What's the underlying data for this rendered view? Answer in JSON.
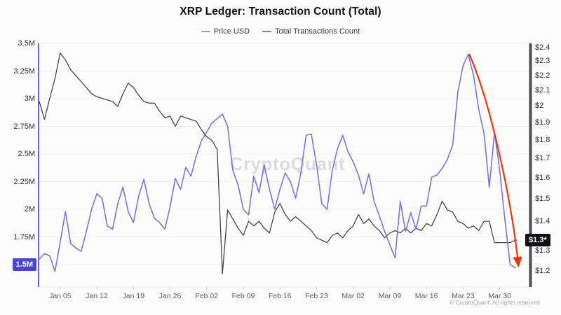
{
  "title": "XRP Ledger: Transaction Count (Total)",
  "legend": [
    {
      "label": "Price USD",
      "color": "#9b9ba2"
    },
    {
      "label": "Total Transactions Count",
      "color": "#7c72e2"
    }
  ],
  "watermark": "CryptoQuant",
  "footer": "© CryptoQuant. All rights reserved",
  "colors": {
    "price_line": "#454549",
    "transactions_line": "#7c72e2",
    "arrow": "#e8380e",
    "left_badge_bg": "#4b44cc",
    "right_badge_bg": "#111113",
    "left_axis_line": "#6e61dd",
    "right_axis_line": "#4b4b50",
    "grid": "#f1f1f4",
    "x_axis_line": "#e3e3e7",
    "x_tick_mark": "#c9c9cf"
  },
  "chart_data": {
    "type": "line",
    "title": "XRP Ledger: Transaction Count (Total)",
    "x_start": "Jan 01",
    "x_end": "Apr 02",
    "frequency": "daily",
    "x_ticks": [
      {
        "label": "Jan 05",
        "day": 4
      },
      {
        "label": "Jan 12",
        "day": 11
      },
      {
        "label": "Jan 19",
        "day": 18
      },
      {
        "label": "Jan 26",
        "day": 25
      },
      {
        "label": "Feb 02",
        "day": 32
      },
      {
        "label": "Feb 09",
        "day": 39
      },
      {
        "label": "Feb 16",
        "day": 46
      },
      {
        "label": "Feb 23",
        "day": 53
      },
      {
        "label": "Mar 02",
        "day": 60
      },
      {
        "label": "Mar 09",
        "day": 67
      },
      {
        "label": "Mar 16",
        "day": 74
      },
      {
        "label": "Mar 23",
        "day": 81
      },
      {
        "label": "Mar 30",
        "day": 88
      }
    ],
    "left_axis": {
      "label_unit": "M transactions",
      "scale": "linear",
      "range": [
        1.5,
        3.5
      ],
      "ticks": [
        {
          "label": "3.5M",
          "value": 3.5
        },
        {
          "label": "3.25M",
          "value": 3.25
        },
        {
          "label": "3M",
          "value": 3.0
        },
        {
          "label": "2.75M",
          "value": 2.75
        },
        {
          "label": "2.5M",
          "value": 2.5
        },
        {
          "label": "2.25M",
          "value": 2.25
        },
        {
          "label": "2M",
          "value": 2.0
        },
        {
          "label": "1.75M",
          "value": 1.75
        }
      ],
      "badge": {
        "label": "1.5M",
        "value": 1.5
      }
    },
    "right_axis": {
      "label_unit": "USD",
      "scale": "log",
      "range": [
        1.2,
        2.4
      ],
      "ticks": [
        {
          "label": "$2.4",
          "value": 2.4,
          "dy": 0
        },
        {
          "label": "$2.3",
          "value": 2.3,
          "dy": 0
        },
        {
          "label": "$2.2",
          "value": 2.2,
          "dy": 0
        },
        {
          "label": "$2.1",
          "value": 2.1,
          "dy": 0
        },
        {
          "label": "$2",
          "value": 2.0,
          "dy": 0
        },
        {
          "label": "$1.9",
          "value": 1.9,
          "dy": 0
        },
        {
          "label": "$1.8",
          "value": 1.8,
          "dy": 0
        },
        {
          "label": "$1.7",
          "value": 1.7,
          "dy": 0
        },
        {
          "label": "$1.6",
          "value": 1.6,
          "dy": 0
        },
        {
          "label": "$1.5",
          "value": 1.5,
          "dy": 0
        },
        {
          "label": "$1.4",
          "value": 1.4,
          "dy": 0
        },
        {
          "label": "$1.3",
          "value": 1.3,
          "dy": 8
        },
        {
          "label": "$1.2",
          "value": 1.2,
          "dy": 0
        }
      ],
      "badge": {
        "label": "$1.3*",
        "value": 1.32
      }
    },
    "series": [
      {
        "name": "Price USD",
        "axis": "right",
        "color": "#454549",
        "width": 1.3,
        "values": [
          2.03,
          1.92,
          2.05,
          2.18,
          2.36,
          2.31,
          2.24,
          2.2,
          2.16,
          2.12,
          2.08,
          2.06,
          2.05,
          2.04,
          2.03,
          2.0,
          2.08,
          2.15,
          2.12,
          2.07,
          2.03,
          2.02,
          2.02,
          1.97,
          1.93,
          1.94,
          1.88,
          1.94,
          1.93,
          1.92,
          1.91,
          1.86,
          1.82,
          1.8,
          1.75,
          1.19,
          1.45,
          1.41,
          1.37,
          1.34,
          1.4,
          1.38,
          1.4,
          1.37,
          1.35,
          1.44,
          1.48,
          1.43,
          1.4,
          1.42,
          1.4,
          1.38,
          1.36,
          1.33,
          1.32,
          1.31,
          1.34,
          1.35,
          1.33,
          1.36,
          1.38,
          1.43,
          1.39,
          1.41,
          1.38,
          1.36,
          1.33,
          1.35,
          1.36,
          1.35,
          1.37,
          1.35,
          1.37,
          1.36,
          1.39,
          1.38,
          1.43,
          1.49,
          1.45,
          1.44,
          1.4,
          1.39,
          1.37,
          1.38,
          1.36,
          1.4,
          1.4,
          1.31,
          1.31,
          1.31,
          1.31,
          1.32
        ]
      },
      {
        "name": "Total Transactions Count",
        "axis": "left",
        "color": "#7c72e2",
        "width": 1.6,
        "values": [
          1.55,
          1.6,
          1.58,
          1.44,
          1.7,
          1.98,
          1.69,
          1.65,
          1.62,
          1.8,
          2.0,
          2.14,
          2.1,
          1.85,
          1.82,
          2.05,
          2.2,
          1.98,
          1.88,
          2.12,
          2.27,
          2.05,
          1.92,
          1.88,
          1.82,
          2.02,
          2.28,
          2.18,
          2.38,
          2.3,
          2.48,
          2.62,
          2.7,
          2.78,
          2.82,
          2.86,
          2.75,
          2.35,
          2.22,
          2.0,
          1.95,
          2.3,
          2.15,
          2.4,
          2.18,
          2.0,
          2.18,
          2.33,
          2.25,
          2.1,
          2.33,
          2.67,
          2.68,
          2.4,
          2.05,
          2.0,
          2.35,
          2.55,
          2.67,
          2.52,
          2.43,
          2.31,
          2.14,
          2.32,
          2.07,
          1.94,
          1.8,
          1.68,
          1.56,
          2.07,
          1.8,
          1.97,
          1.82,
          2.03,
          2.03,
          2.29,
          2.31,
          2.37,
          2.45,
          2.58,
          3.06,
          3.3,
          3.4,
          3.21,
          2.9,
          2.69,
          2.2,
          2.7,
          2.35,
          1.9,
          1.5,
          1.47
        ]
      }
    ],
    "annotations": [
      {
        "type": "arrow",
        "color": "#e8380e",
        "from": "transactions-peak",
        "to": "transactions-end",
        "meaning": "drawn red arrow highlighting collapse from peak to current low"
      },
      {
        "type": "axis-badge",
        "axis": "left",
        "label": "1.5M"
      },
      {
        "type": "axis-badge",
        "axis": "right",
        "label": "$1.3*"
      }
    ],
    "legend_position": "top",
    "grid": "horizontal-only"
  }
}
